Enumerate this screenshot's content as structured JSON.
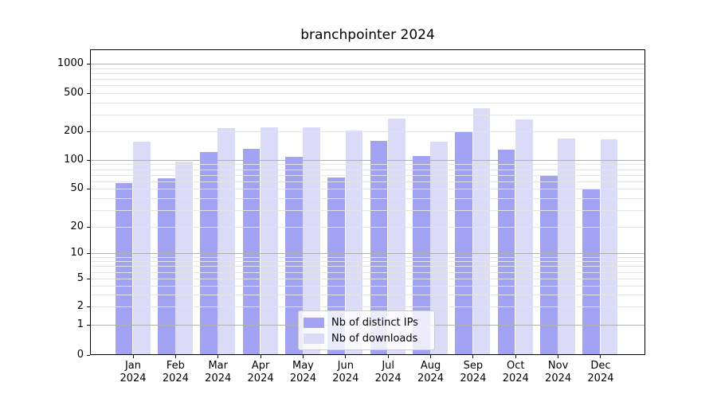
{
  "title": "branchpointer 2024",
  "chart_data": {
    "type": "bar",
    "title": "branchpointer 2024",
    "categories": [
      "Jan 2024",
      "Feb 2024",
      "Mar 2024",
      "Apr 2024",
      "May 2024",
      "Jun 2024",
      "Jul 2024",
      "Aug 2024",
      "Sep 2024",
      "Oct 2024",
      "Nov 2024",
      "Dec 2024"
    ],
    "series": [
      {
        "name": "Nb of distinct IPs",
        "color": "#a2a2f2",
        "values": [
          57,
          64,
          122,
          130,
          109,
          65,
          160,
          110,
          198,
          129,
          69,
          50
        ]
      },
      {
        "name": "Nb of downloads",
        "color": "#dbdbf8",
        "values": [
          156,
          97,
          215,
          220,
          222,
          205,
          273,
          155,
          345,
          268,
          168,
          165
        ]
      }
    ],
    "yscale": "log-with-zero-baseline",
    "yticks": [
      0,
      1,
      2,
      5,
      10,
      20,
      50,
      100,
      200,
      500,
      1000
    ],
    "ylim": [
      0,
      1400
    ],
    "grid": true,
    "grid_major_color": "#b0b0b0",
    "grid_minor_color": "#e4e4e4",
    "legend_position": "lower center",
    "background": "#ffffff"
  }
}
